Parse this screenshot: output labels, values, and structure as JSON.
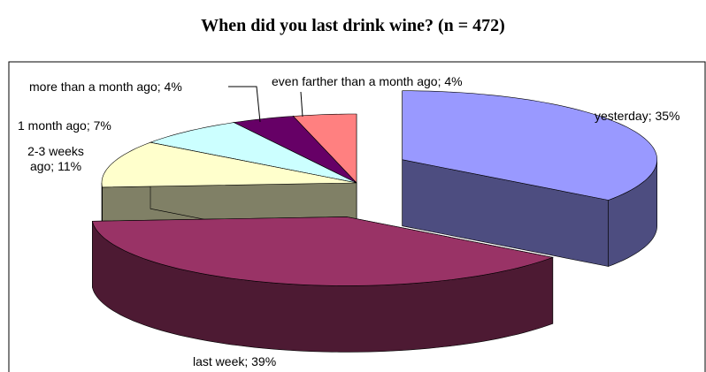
{
  "chart_data": {
    "type": "pie",
    "title": "When did you last drink wine? (n = 472)",
    "values": [
      35,
      39,
      11,
      7,
      4,
      4
    ],
    "value_labels": [
      "yesterday; 35%",
      "last week; 39%",
      "2-3 weeks ago; 11%",
      "1 month ago; 7%",
      "more than a month ago; 4%",
      "even farther than a month ago; 4%"
    ],
    "colors": [
      "#9999ff",
      "#993366",
      "#ffffcc",
      "#ccffff",
      "#660066",
      "#ff8080"
    ]
  }
}
